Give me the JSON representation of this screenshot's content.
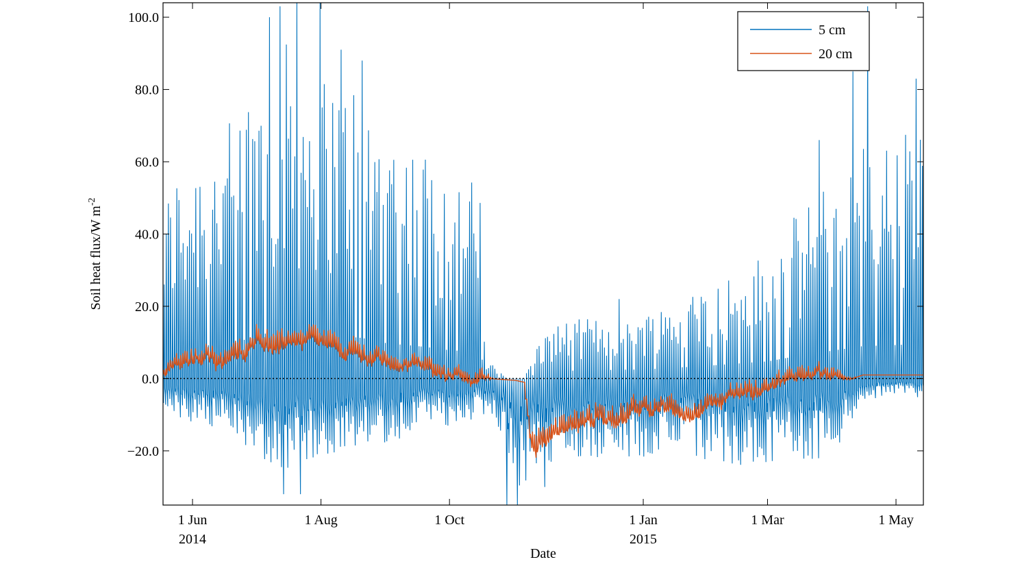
{
  "chart_data": {
    "type": "line",
    "title": "",
    "xlabel": "Date",
    "ylabel": "Soil heat flux/W m",
    "ylabel_superscript": "-2",
    "xlim": [
      "2014-05-18",
      "2015-05-14"
    ],
    "ylim": [
      -35,
      104
    ],
    "y_ticks": [
      {
        "value": -20,
        "label": "−20.0"
      },
      {
        "value": 0,
        "label": "0.0"
      },
      {
        "value": 20,
        "label": "20.0"
      },
      {
        "value": 40,
        "label": "40.0"
      },
      {
        "value": 60,
        "label": "60.0"
      },
      {
        "value": 80,
        "label": "80.0"
      },
      {
        "value": 100,
        "label": "100.0"
      }
    ],
    "x_ticks": [
      {
        "date": "2014-06-01",
        "label": "1 Jun",
        "year_label": "2014"
      },
      {
        "date": "2014-08-01",
        "label": "1 Aug",
        "year_label": ""
      },
      {
        "date": "2014-10-01",
        "label": "1 Oct",
        "year_label": ""
      },
      {
        "date": "2015-01-01",
        "label": "1 Jan",
        "year_label": "2015"
      },
      {
        "date": "2015-03-01",
        "label": "1 Mar",
        "year_label": ""
      },
      {
        "date": "2015-05-01",
        "label": "1 May",
        "year_label": ""
      }
    ],
    "zero_line": {
      "value": 0,
      "style": "dotted"
    },
    "grid": false,
    "legend_position": "top-right",
    "series": [
      {
        "name": "5 cm",
        "color": "#0072BD",
        "style": "diurnal",
        "daily_max": [
          [
            "2014-05-18",
            45
          ],
          [
            "2014-05-25",
            55
          ],
          [
            "2014-06-01",
            60
          ],
          [
            "2014-06-10",
            62
          ],
          [
            "2014-06-20",
            65
          ],
          [
            "2014-06-30",
            78
          ],
          [
            "2014-07-10",
            88
          ],
          [
            "2014-07-20",
            82
          ],
          [
            "2014-08-01",
            80
          ],
          [
            "2014-08-10",
            78
          ],
          [
            "2014-08-20",
            75
          ],
          [
            "2014-09-01",
            65
          ],
          [
            "2014-09-10",
            62
          ],
          [
            "2014-09-20",
            58
          ],
          [
            "2014-10-01",
            52
          ],
          [
            "2014-10-15",
            50
          ],
          [
            "2014-10-18",
            5
          ],
          [
            "2014-10-28",
            0
          ],
          [
            "2014-11-05",
            0
          ],
          [
            "2014-11-10",
            8
          ],
          [
            "2014-11-20",
            14
          ],
          [
            "2014-12-01",
            15
          ],
          [
            "2014-12-15",
            16
          ],
          [
            "2015-01-01",
            17
          ],
          [
            "2015-01-15",
            20
          ],
          [
            "2015-02-01",
            24
          ],
          [
            "2015-02-15",
            28
          ],
          [
            "2015-03-01",
            32
          ],
          [
            "2015-03-15",
            42
          ],
          [
            "2015-04-01",
            52
          ],
          [
            "2015-04-15",
            60
          ],
          [
            "2015-05-01",
            62
          ],
          [
            "2015-05-14",
            65
          ]
        ],
        "daily_min": [
          [
            "2014-05-18",
            -8
          ],
          [
            "2014-06-01",
            -12
          ],
          [
            "2014-06-15",
            -14
          ],
          [
            "2014-07-01",
            -18
          ],
          [
            "2014-07-10",
            -24
          ],
          [
            "2014-07-20",
            -22
          ],
          [
            "2014-08-01",
            -20
          ],
          [
            "2014-08-15",
            -20
          ],
          [
            "2014-09-01",
            -16
          ],
          [
            "2014-09-15",
            -14
          ],
          [
            "2014-10-01",
            -12
          ],
          [
            "2014-10-15",
            -10
          ],
          [
            "2014-10-20",
            -8
          ],
          [
            "2014-10-25",
            -20
          ],
          [
            "2014-11-01",
            -30
          ],
          [
            "2014-11-05",
            -28
          ],
          [
            "2014-11-10",
            -24
          ],
          [
            "2014-12-01",
            -20
          ],
          [
            "2015-01-01",
            -20
          ],
          [
            "2015-02-01",
            -22
          ],
          [
            "2015-03-01",
            -22
          ],
          [
            "2015-04-01",
            -20
          ],
          [
            "2015-04-15",
            -6
          ],
          [
            "2015-05-01",
            -4
          ],
          [
            "2015-05-14",
            -5
          ]
        ],
        "highlights": [
          [
            "2014-07-07",
            100
          ],
          [
            "2014-07-12",
            103
          ],
          [
            "2014-07-20",
            104
          ],
          [
            "2014-07-31",
            104
          ],
          [
            "2014-08-10",
            91
          ],
          [
            "2014-08-20",
            88
          ],
          [
            "2014-07-14",
            -32
          ],
          [
            "2014-07-22",
            -32
          ],
          [
            "2014-10-28",
            -35
          ],
          [
            "2014-11-02",
            -35
          ],
          [
            "2014-11-15",
            -30
          ],
          [
            "2014-12-20",
            22
          ],
          [
            "2015-03-25",
            66
          ],
          [
            "2015-04-10",
            85
          ],
          [
            "2015-04-17",
            103
          ],
          [
            "2015-05-10",
            83
          ]
        ]
      },
      {
        "name": "20 cm",
        "color": "#D95319",
        "style": "smooth",
        "mean": [
          [
            "2014-05-18",
            1
          ],
          [
            "2014-05-25",
            4
          ],
          [
            "2014-06-01",
            6
          ],
          [
            "2014-06-10",
            7
          ],
          [
            "2014-06-15",
            4
          ],
          [
            "2014-06-25",
            8
          ],
          [
            "2014-07-01",
            12
          ],
          [
            "2014-07-10",
            10
          ],
          [
            "2014-07-20",
            11
          ],
          [
            "2014-08-01",
            9
          ],
          [
            "2014-08-10",
            8
          ],
          [
            "2014-08-20",
            6
          ],
          [
            "2014-09-01",
            5
          ],
          [
            "2014-09-10",
            4
          ],
          [
            "2014-09-20",
            3
          ],
          [
            "2014-10-01",
            1
          ],
          [
            "2014-10-10",
            0.5
          ],
          [
            "2014-10-20",
            0
          ],
          [
            "2014-11-01",
            -0.5
          ],
          [
            "2014-11-05",
            -1
          ],
          [
            "2014-11-08",
            -15
          ],
          [
            "2014-11-15",
            -18
          ],
          [
            "2014-11-25",
            -14
          ],
          [
            "2014-12-05",
            -11
          ],
          [
            "2014-12-20",
            -9
          ],
          [
            "2015-01-01",
            -7
          ],
          [
            "2015-01-15",
            -9
          ],
          [
            "2015-02-01",
            -7
          ],
          [
            "2015-02-15",
            -4
          ],
          [
            "2015-03-01",
            -2
          ],
          [
            "2015-03-15",
            1
          ],
          [
            "2015-04-01",
            0.5
          ],
          [
            "2015-04-10",
            0
          ],
          [
            "2015-04-15",
            1
          ],
          [
            "2015-05-14",
            1
          ]
        ],
        "amplitude": [
          [
            "2014-05-18",
            3
          ],
          [
            "2014-07-01",
            5
          ],
          [
            "2014-09-01",
            4
          ],
          [
            "2014-10-15",
            3
          ],
          [
            "2014-10-22",
            0
          ],
          [
            "2014-11-07",
            0
          ],
          [
            "2014-11-10",
            6
          ],
          [
            "2014-12-01",
            5
          ],
          [
            "2015-02-01",
            4
          ],
          [
            "2015-04-01",
            3
          ],
          [
            "2015-04-12",
            0
          ],
          [
            "2015-05-14",
            0
          ]
        ]
      }
    ]
  }
}
